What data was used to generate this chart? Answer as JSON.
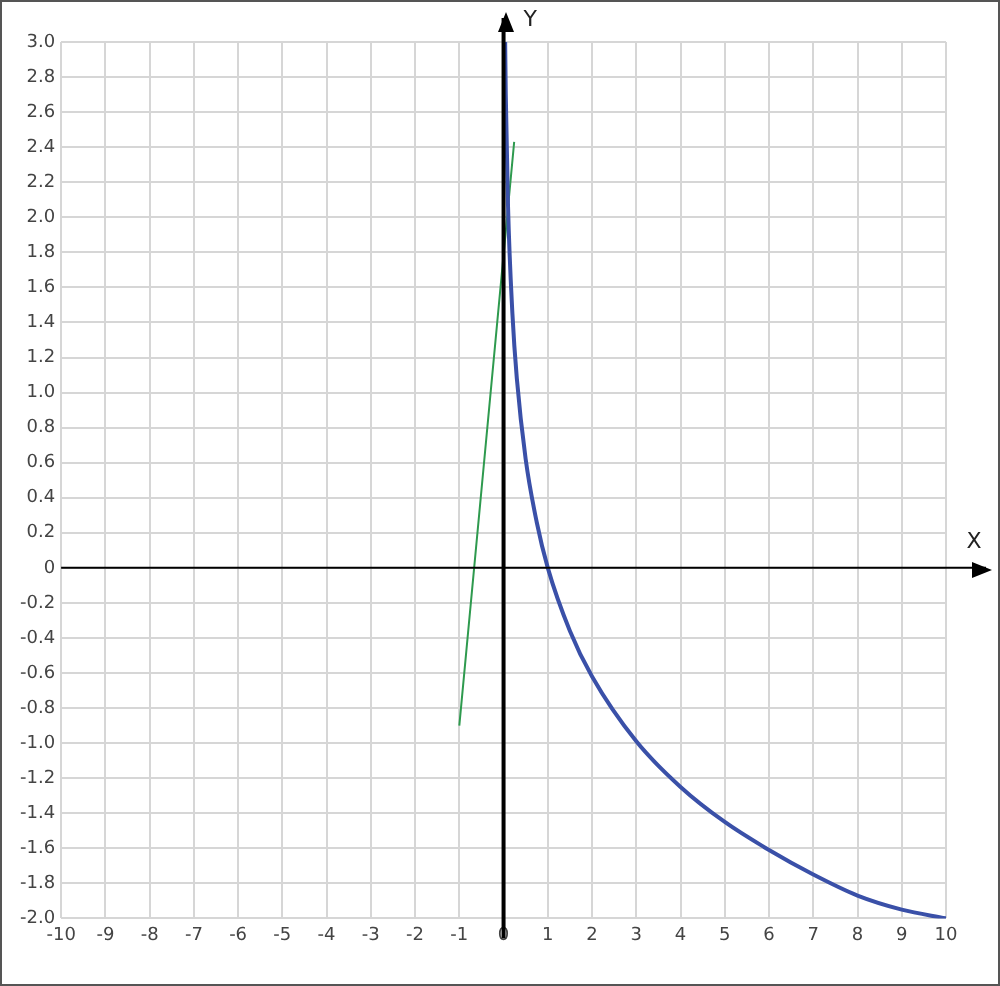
{
  "chart_data": {
    "type": "line",
    "xlabel": "X",
    "ylabel": "Y",
    "xlim": [
      -10,
      10
    ],
    "ylim": [
      -2,
      3
    ],
    "xticks": [
      -10,
      -9,
      -8,
      -7,
      -6,
      -5,
      -4,
      -3,
      -2,
      -1,
      0,
      1,
      2,
      3,
      4,
      5,
      6,
      7,
      8,
      9,
      10
    ],
    "yticks": [
      {
        "value": -2,
        "label": "-2.0"
      },
      {
        "value": -1.8,
        "label": "-1.8"
      },
      {
        "value": -1.6,
        "label": "-1.6"
      },
      {
        "value": -1.4,
        "label": "-1.4"
      },
      {
        "value": -1.2,
        "label": "-1.2"
      },
      {
        "value": -1,
        "label": "-1.0"
      },
      {
        "value": -0.8,
        "label": "-0.8"
      },
      {
        "value": -0.6,
        "label": "-0.6"
      },
      {
        "value": -0.4,
        "label": "-0.4"
      },
      {
        "value": -0.2,
        "label": "-0.2"
      },
      0,
      {
        "value": 0.2,
        "label": "0.2"
      },
      {
        "value": 0.4,
        "label": "0.4"
      },
      {
        "value": 0.6,
        "label": "0.6"
      },
      {
        "value": 0.8,
        "label": "0.8"
      },
      {
        "value": 1,
        "label": "1.0"
      },
      {
        "value": 1.2,
        "label": "1.2"
      },
      {
        "value": 1.4,
        "label": "1.4"
      },
      {
        "value": 1.6,
        "label": "1.6"
      },
      {
        "value": 1.8,
        "label": "1.8"
      },
      {
        "value": 2,
        "label": "2.0"
      },
      {
        "value": 2.2,
        "label": "2.2"
      },
      {
        "value": 2.4,
        "label": "2.4"
      },
      {
        "value": 2.6,
        "label": "2.6"
      },
      {
        "value": 2.8,
        "label": "2.8"
      },
      {
        "value": 3,
        "label": "3.0"
      }
    ],
    "grid": true,
    "marker": "none",
    "line_style": "solid",
    "legend": false,
    "series": [
      {
        "color": "#3a50a8",
        "x": [
          0.036,
          0.05,
          0.1,
          0.2,
          0.3,
          0.5,
          0.75,
          1,
          1.5,
          2,
          3,
          4,
          5,
          6,
          7,
          8,
          9,
          10
        ],
        "values": [
          3.0,
          2.7,
          2.07,
          1.45,
          1.08,
          0.62,
          0.26,
          0,
          -0.36,
          -0.62,
          -0.99,
          -1.25,
          -1.45,
          -1.61,
          -1.75,
          -1.87,
          -1.95,
          -2.0
        ]
      },
      {
        "color": "#2e9a4e",
        "x": [
          -1.0,
          0.24
        ],
        "values": [
          -0.9,
          2.43
        ]
      }
    ]
  }
}
